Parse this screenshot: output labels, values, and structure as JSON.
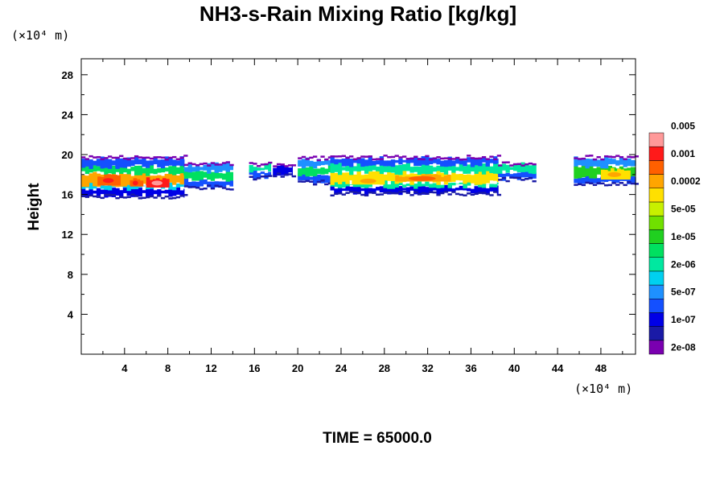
{
  "chart_data": {
    "type": "heatmap",
    "title": "NH3-s-Rain Mixing Ratio [kg/kg]",
    "ylabel": "Height",
    "x_unit": "(×10⁴ m)",
    "y_unit": "(×10⁴ m)",
    "footer": "TIME = 65000.0",
    "xlim": [
      0,
      51.2
    ],
    "ylim": [
      0,
      29.6
    ],
    "x_ticks": [
      4,
      8,
      12,
      16,
      20,
      24,
      28,
      32,
      36,
      40,
      44,
      48
    ],
    "y_ticks": [
      4,
      8,
      12,
      16,
      20,
      24,
      28
    ],
    "x_tick_labels": [
      "4",
      "8",
      "12",
      "16",
      "20",
      "24",
      "28",
      "32",
      "36",
      "40",
      "44",
      "48"
    ],
    "y_tick_labels": [
      "4",
      "8",
      "12",
      "16",
      "20",
      "24",
      "28"
    ],
    "colorbar": {
      "colors": [
        "#7a00b0",
        "#1a1aa6",
        "#0000e6",
        "#1450ff",
        "#1e90ff",
        "#00d0f0",
        "#00e8a0",
        "#00e060",
        "#20d020",
        "#70e000",
        "#c8f000",
        "#ffe000",
        "#ffa500",
        "#ff6000",
        "#ff1a1a",
        "#ff9999"
      ],
      "labels": [
        "2e-08",
        "1e-07",
        "5e-07",
        "2e-06",
        "1e-05",
        "5e-05",
        "0.0002",
        "0.001",
        "0.005"
      ]
    },
    "field": {
      "description_levels": "level index 0..15 maps to colorbar colors",
      "cells": [
        {
          "x0": 0.0,
          "x1": 9.5,
          "bands": [
            [
              15.9,
              16.6,
              2
            ],
            [
              16.6,
              17.0,
              5
            ],
            [
              17.0,
              18.1,
              12
            ],
            [
              18.1,
              18.8,
              7
            ],
            [
              18.8,
              19.6,
              3
            ]
          ],
          "hot": [
            [
              1.5,
              3.5,
              16.9,
              17.9,
              13
            ],
            [
              6.0,
              8.0,
              16.7,
              17.6,
              14
            ],
            [
              4.5,
              5.5,
              16.8,
              17.5,
              13
            ]
          ]
        },
        {
          "x0": 9.5,
          "x1": 14.0,
          "bands": [
            [
              16.8,
              17.5,
              3
            ],
            [
              17.5,
              18.3,
              7
            ],
            [
              18.3,
              19.0,
              4
            ]
          ]
        },
        {
          "x0": 15.5,
          "x1": 17.5,
          "bands": [
            [
              17.8,
              18.4,
              3
            ],
            [
              18.4,
              18.9,
              6
            ]
          ]
        },
        {
          "x0": 17.7,
          "x1": 19.5,
          "bands": [
            [
              18.0,
              18.8,
              2
            ]
          ]
        },
        {
          "x0": 20.0,
          "x1": 23.0,
          "bands": [
            [
              17.3,
              18.0,
              3
            ],
            [
              18.0,
              18.8,
              7
            ],
            [
              18.8,
              19.5,
              4
            ]
          ]
        },
        {
          "x0": 23.0,
          "x1": 38.5,
          "bands": [
            [
              16.2,
              16.8,
              2
            ],
            [
              16.8,
              17.2,
              6
            ],
            [
              17.2,
              18.2,
              11
            ],
            [
              18.2,
              19.0,
              6
            ],
            [
              19.0,
              19.6,
              3
            ]
          ],
          "hot": [
            [
              29.0,
              34.0,
              17.3,
              17.9,
              12
            ],
            [
              25.0,
              28.0,
              17.0,
              17.7,
              11
            ]
          ]
        },
        {
          "x0": 38.5,
          "x1": 42.0,
          "bands": [
            [
              17.6,
              18.3,
              3
            ],
            [
              18.3,
              19.0,
              6
            ]
          ]
        },
        {
          "x0": 45.5,
          "x1": 51.2,
          "bands": [
            [
              17.2,
              17.8,
              3
            ],
            [
              17.8,
              18.8,
              8
            ],
            [
              18.8,
              19.6,
              4
            ]
          ],
          "hot": [
            [
              48.0,
              50.5,
              17.5,
              18.5,
              11
            ]
          ]
        }
      ]
    }
  }
}
